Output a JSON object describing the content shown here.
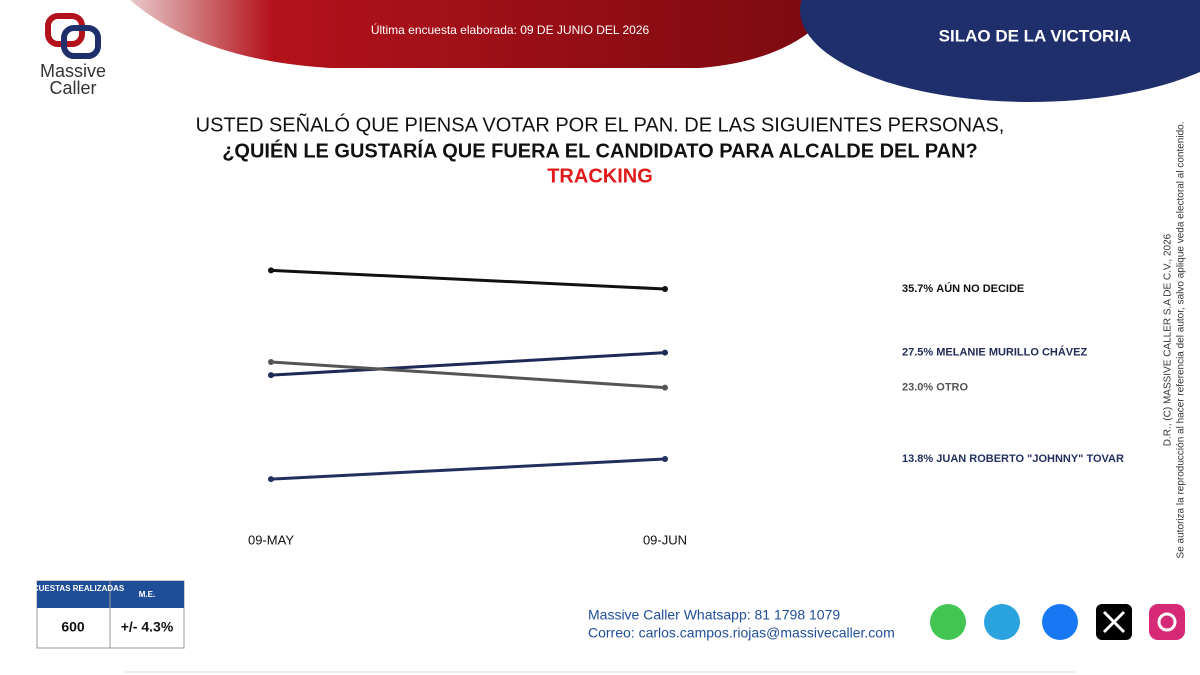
{
  "header": {
    "survey_date": "Última encuesta elaborada: 09 DE JUNIO DEL 2026",
    "location": "SILAO DE LA VICTORIA",
    "logo_top": "Massive",
    "logo_bottom": "Caller"
  },
  "chart_data": {
    "type": "line",
    "title": "USTED SEÑALÓ QUE PIENSA VOTAR POR EL PAN. DE LAS SIGUIENTES PERSONAS,",
    "subtitle": "¿QUIÉN LE GUSTARÍA QUE FUERA EL CANDIDATO PARA ALCALDE DEL PAN?",
    "annotation": "TRACKING",
    "categories": [
      "09-MAY",
      "09-JUN"
    ],
    "ylim": [
      10,
      40
    ],
    "series": [
      {
        "name": "AÚN NO DECIDE",
        "color": "#111111",
        "values": [
          38.1,
          35.7
        ],
        "value_labels": [
          null,
          "35.7%"
        ]
      },
      {
        "name": "MELANIE MURILLO CHÁVEZ",
        "color": "#1f2a56",
        "values": [
          24.6,
          27.5
        ],
        "value_labels": [
          null,
          "27.5%"
        ]
      },
      {
        "name": "OTRO",
        "color": "#555555",
        "values": [
          26.3,
          23.0
        ],
        "value_labels": [
          null,
          "23.0%"
        ]
      },
      {
        "name": "JUAN ROBERTO \"JOHNNY\" TOVAR",
        "color": "#23305f",
        "values": [
          11.2,
          13.8
        ],
        "value_labels": [
          null,
          "13.8%"
        ]
      }
    ]
  },
  "copyright": [
    "D.R., (C) MASSIVE CALLER S.A DE C.V., 2026",
    "Se autoriza la reproducción al hacer referencia del autor, salvo aplique veda electoral al contenido."
  ],
  "table": {
    "headers": [
      "ENCUESTAS REALIZADAS",
      "M.E."
    ],
    "rows": [
      [
        600,
        "+/- 4.3%"
      ]
    ]
  },
  "contact": [
    "Massive Caller Whatsapp: 81 1798 1079",
    "Correo: carlos.campos.riojas@massivecaller.com"
  ]
}
